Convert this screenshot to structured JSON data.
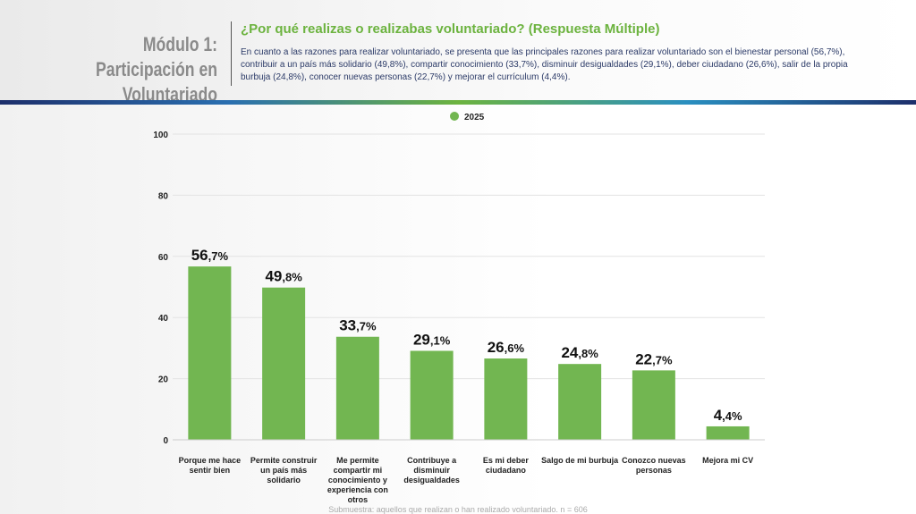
{
  "header": {
    "module_line1": "Módulo 1:",
    "module_line2": "Participación en Voluntariado",
    "title": "¿Por qué realizas o realizabas voluntariado? (Respuesta Múltiple)",
    "description": "En cuanto a las razones para realizar voluntariado, se presenta que las principales razones para realizar voluntariado son el bienestar personal (56,7%), contribuir a un país más solidario (49,8%), compartir conocimiento (33,7%), disminuir desigualdades (29,1%), deber ciudadano (26,6%), salir de la propia burbuja (24,8%), conocer nuevas personas (22,7%) y mejorar el currículum (4,4%)."
  },
  "footnote": "Submuestra: aquellos que realizan o han realizado voluntariado. n = 606",
  "colors": {
    "bar": "#72b651",
    "title": "#6cb33f",
    "text": "#2b3a67"
  },
  "chart_data": {
    "type": "bar",
    "categories": [
      "Porque me hace sentir bien",
      "Permite construir un país más solidario",
      "Me permite compartir mi conocimiento y experiencia con otros",
      "Contribuye a disminuir desigualdades",
      "Es mi deber ciudadano",
      "Salgo de mi burbuja",
      "Conozco nuevas personas",
      "Mejora mi CV"
    ],
    "series": [
      {
        "name": "2025",
        "values": [
          56.7,
          49.8,
          33.7,
          29.1,
          26.6,
          24.8,
          22.7,
          4.4
        ]
      }
    ],
    "data_labels": [
      [
        "56",
        ",7%"
      ],
      [
        "49",
        ",8%"
      ],
      [
        "33",
        ",7%"
      ],
      [
        "29",
        ",1%"
      ],
      [
        "26",
        ",6%"
      ],
      [
        "24",
        ",8%"
      ],
      [
        "22",
        ",7%"
      ],
      [
        "4",
        ",4%"
      ]
    ],
    "yticks": [
      "0",
      "20",
      "40",
      "60",
      "80",
      "100"
    ],
    "ylim": [
      0,
      100
    ],
    "grid": true,
    "legend": "top-center"
  }
}
